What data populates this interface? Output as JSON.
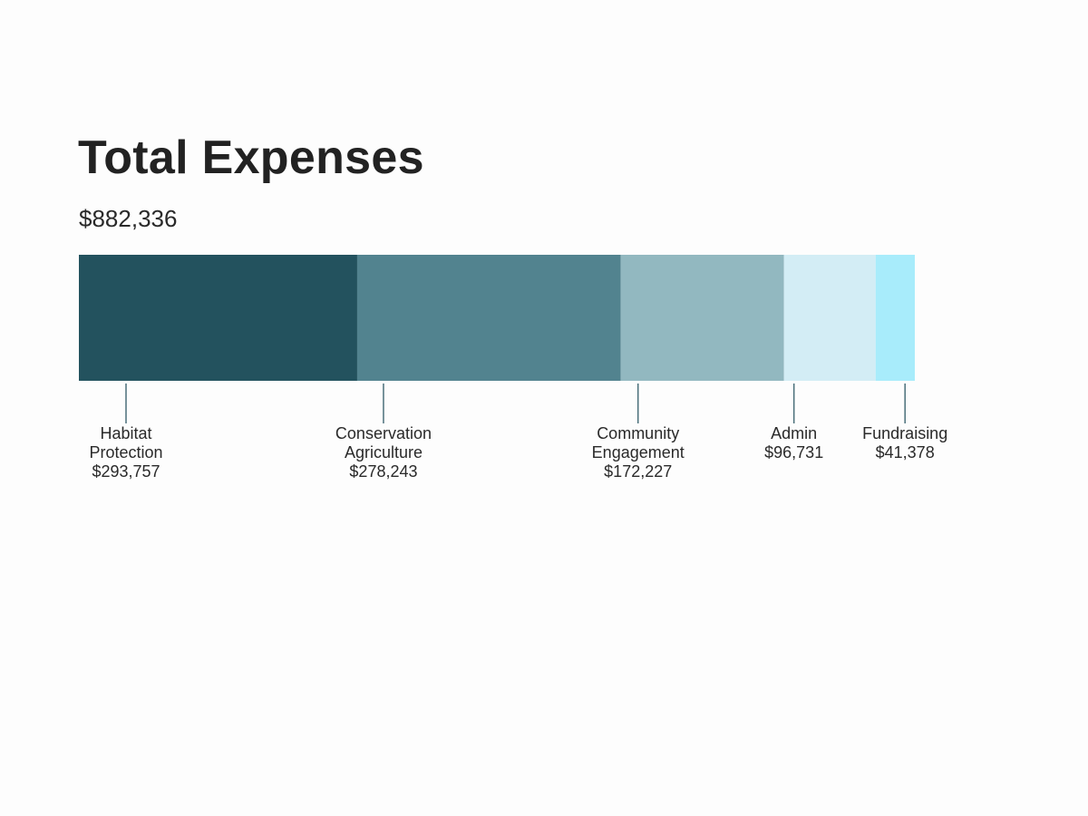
{
  "chart_data": {
    "type": "bar",
    "stacked": true,
    "orientation": "horizontal",
    "title": "Total Expenses",
    "total_label": "$882,336",
    "total": 882336,
    "categories": [
      {
        "lines": [
          "Habitat",
          "Protection"
        ],
        "value_label": "$293,757",
        "value": 293757,
        "color": "#23525e"
      },
      {
        "lines": [
          "Conservation",
          "Agriculture"
        ],
        "value_label": "$278,243",
        "value": 278243,
        "color": "#52838f"
      },
      {
        "lines": [
          "Community",
          "Engagement"
        ],
        "value_label": "$172,227",
        "value": 172227,
        "color": "#92b8c0"
      },
      {
        "lines": [
          "Admin"
        ],
        "value_label": "$96,731",
        "value": 96731,
        "color": "#d3edf5"
      },
      {
        "lines": [
          "Fundraising"
        ],
        "value_label": "$41,378",
        "value": 41378,
        "color": "#a8ecfb"
      }
    ]
  }
}
